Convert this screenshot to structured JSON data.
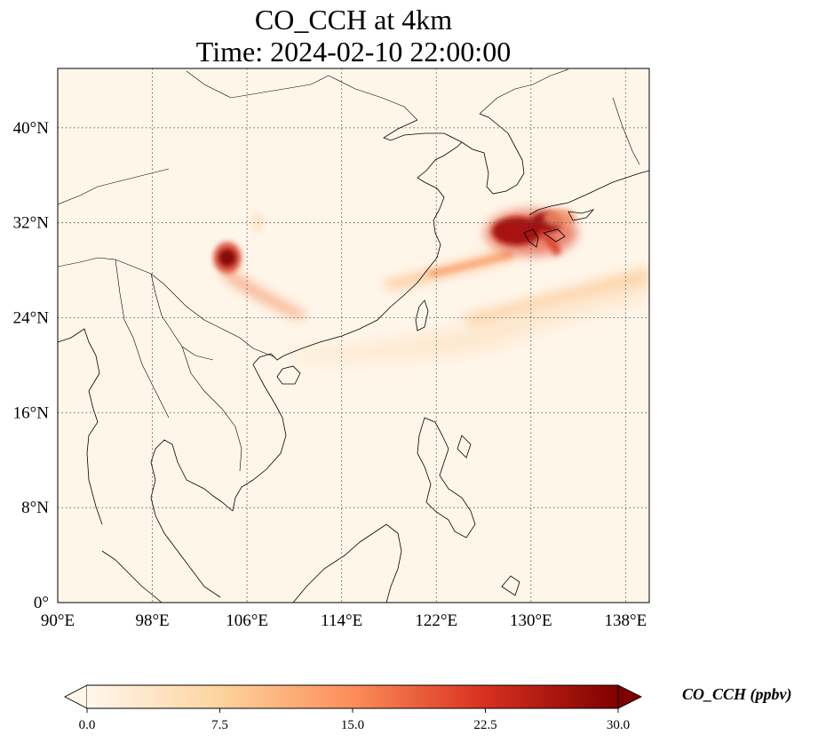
{
  "title": {
    "line1": "CO_CCH at 4km",
    "line2": "Time: 2024-02-10 22:00:00"
  },
  "map": {
    "lon_range": [
      90,
      140
    ],
    "lat_range": [
      0,
      45
    ],
    "lon_ticks": [
      {
        "value": 90,
        "label": "90°E"
      },
      {
        "value": 98,
        "label": "98°E"
      },
      {
        "value": 106,
        "label": "106°E"
      },
      {
        "value": 114,
        "label": "114°E"
      },
      {
        "value": 122,
        "label": "122°E"
      },
      {
        "value": 130,
        "label": "130°E"
      },
      {
        "value": 138,
        "label": "138°E"
      }
    ],
    "lat_ticks": [
      {
        "value": 0,
        "label": "0°"
      },
      {
        "value": 8,
        "label": "8°N"
      },
      {
        "value": 16,
        "label": "16°N"
      },
      {
        "value": 24,
        "label": "24°N"
      },
      {
        "value": 32,
        "label": "32°N"
      },
      {
        "value": 40,
        "label": "40°N"
      }
    ],
    "gridlines": "dotted"
  },
  "colorbar": {
    "label": "CO_CCH (ppbv)",
    "ticks": [
      "0.0",
      "7.5",
      "15.0",
      "22.5",
      "30.0"
    ],
    "tick_values": [
      0,
      7.5,
      15,
      22.5,
      30
    ],
    "extend": "both",
    "colors": [
      "#fff7ec",
      "#fdd49e",
      "#fc8d59",
      "#d7301f",
      "#7f0000"
    ]
  },
  "colors": {
    "background": "#fff6ea",
    "high": "#7f0000",
    "mid": "#d7301f",
    "low": "#fdd49e"
  }
}
